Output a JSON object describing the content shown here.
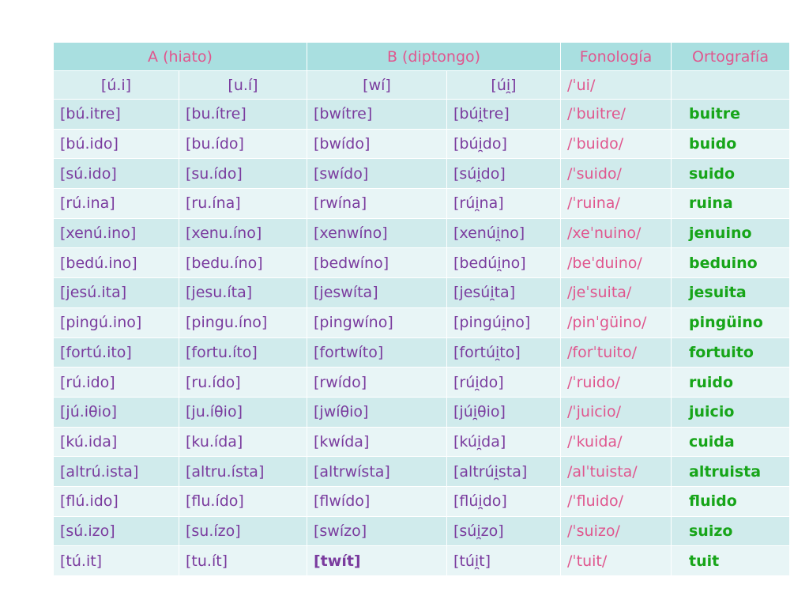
{
  "headers": {
    "a": "A (hiato)",
    "b": "B (diptongo)",
    "fonologia": "Fonología",
    "ortografia": "Ortografía"
  },
  "subheaders": {
    "a1": "[ú.i]",
    "a2": "[u.í]",
    "b1": "[wí]",
    "b2": "[úi̯]",
    "fon": "/ˈui/",
    "orto": ""
  },
  "rows": [
    {
      "a1": "[bú.itre]",
      "a2": "[bu.ítre]",
      "b1": "[bwítre]",
      "b2": "[búi̯tre]",
      "fon": "/ˈbuitre/",
      "orto": "buitre"
    },
    {
      "a1": "[bú.ido]",
      "a2": "[bu.ído]",
      "b1": "[bwído]",
      "b2": "[búi̯do]",
      "fon": "/ˈbuido/",
      "orto": "buido"
    },
    {
      "a1": "[sú.ido]",
      "a2": "[su.ído]",
      "b1": "[swído]",
      "b2": "[súi̯do]",
      "fon": "/ˈsuido/",
      "orto": "suido"
    },
    {
      "a1": "[rú.ina]",
      "a2": "[ru.ína]",
      "b1": "[rwína]",
      "b2": "[rúi̯na]",
      "fon": "/ˈruina/",
      "orto": "ruina"
    },
    {
      "a1": "[xenú.ino]",
      "a2": "[xenu.íno]",
      "b1": "[xenwíno]",
      "b2": "[xenúi̯no]",
      "fon": "/xeˈnuino/",
      "orto": "jenuino"
    },
    {
      "a1": "[bedú.ino]",
      "a2": "[bedu.íno]",
      "b1": "[bedwíno]",
      "b2": "[bedúi̯no]",
      "fon": "/beˈduino/",
      "orto": "beduino"
    },
    {
      "a1": "[jesú.ita]",
      "a2": "[jesu.íta]",
      "b1": "[jeswíta]",
      "b2": "[jesúi̯ta]",
      "fon": "/jeˈsuita/",
      "orto": "jesuita"
    },
    {
      "a1": "[pingú.ino]",
      "a2": "[pingu.íno]",
      "b1": "[pingwíno]",
      "b2": "[pingúi̯no]",
      "fon": "/pinˈgüino/",
      "orto": "pingüino"
    },
    {
      "a1": "[fortú.ito]",
      "a2": "[fortu.íto]",
      "b1": "[fortwíto]",
      "b2": "[fortúi̯to]",
      "fon": "/forˈtuito/",
      "orto": "fortuito"
    },
    {
      "a1": "[rú.ido]",
      "a2": "[ru.ído]",
      "b1": "[rwído]",
      "b2": "[rúi̯do]",
      "fon": "/ˈruido/",
      "orto": "ruido"
    },
    {
      "a1": "[jú.iθio]",
      "a2": "[ju.íθio]",
      "b1": "[jwíθio]",
      "b2": "[júi̯θio]",
      "fon": "/ˈjuicio/",
      "orto": "juicio"
    },
    {
      "a1": "[kú.ida]",
      "a2": "[ku.ída]",
      "b1": "[kwída]",
      "b2": "[kúi̯da]",
      "fon": "/ˈkuida/",
      "orto": "cuida"
    },
    {
      "a1": "[altrú.ista]",
      "a2": "[altru.ísta]",
      "b1": "[altrwísta]",
      "b2": "[altrúi̯sta]",
      "fon": "/alˈtuista/",
      "orto": "altruista"
    },
    {
      "a1": "[flú.ido]",
      "a2": "[flu.ído]",
      "b1": "[flwído]",
      "b2": "[flúi̯do]",
      "fon": "/ˈfluido/",
      "orto": "fluido"
    },
    {
      "a1": "[sú.izo]",
      "a2": "[su.ízo]",
      "b1": "[swízo]",
      "b2": "[súi̯zo]",
      "fon": "/ˈsuizo/",
      "orto": "suizo"
    },
    {
      "a1": "[tú.it]",
      "a2": "[tu.ít]",
      "b1": "[twít]",
      "b2": "[túi̯t]",
      "fon": "/ˈtuit/",
      "orto": "tuit"
    }
  ]
}
